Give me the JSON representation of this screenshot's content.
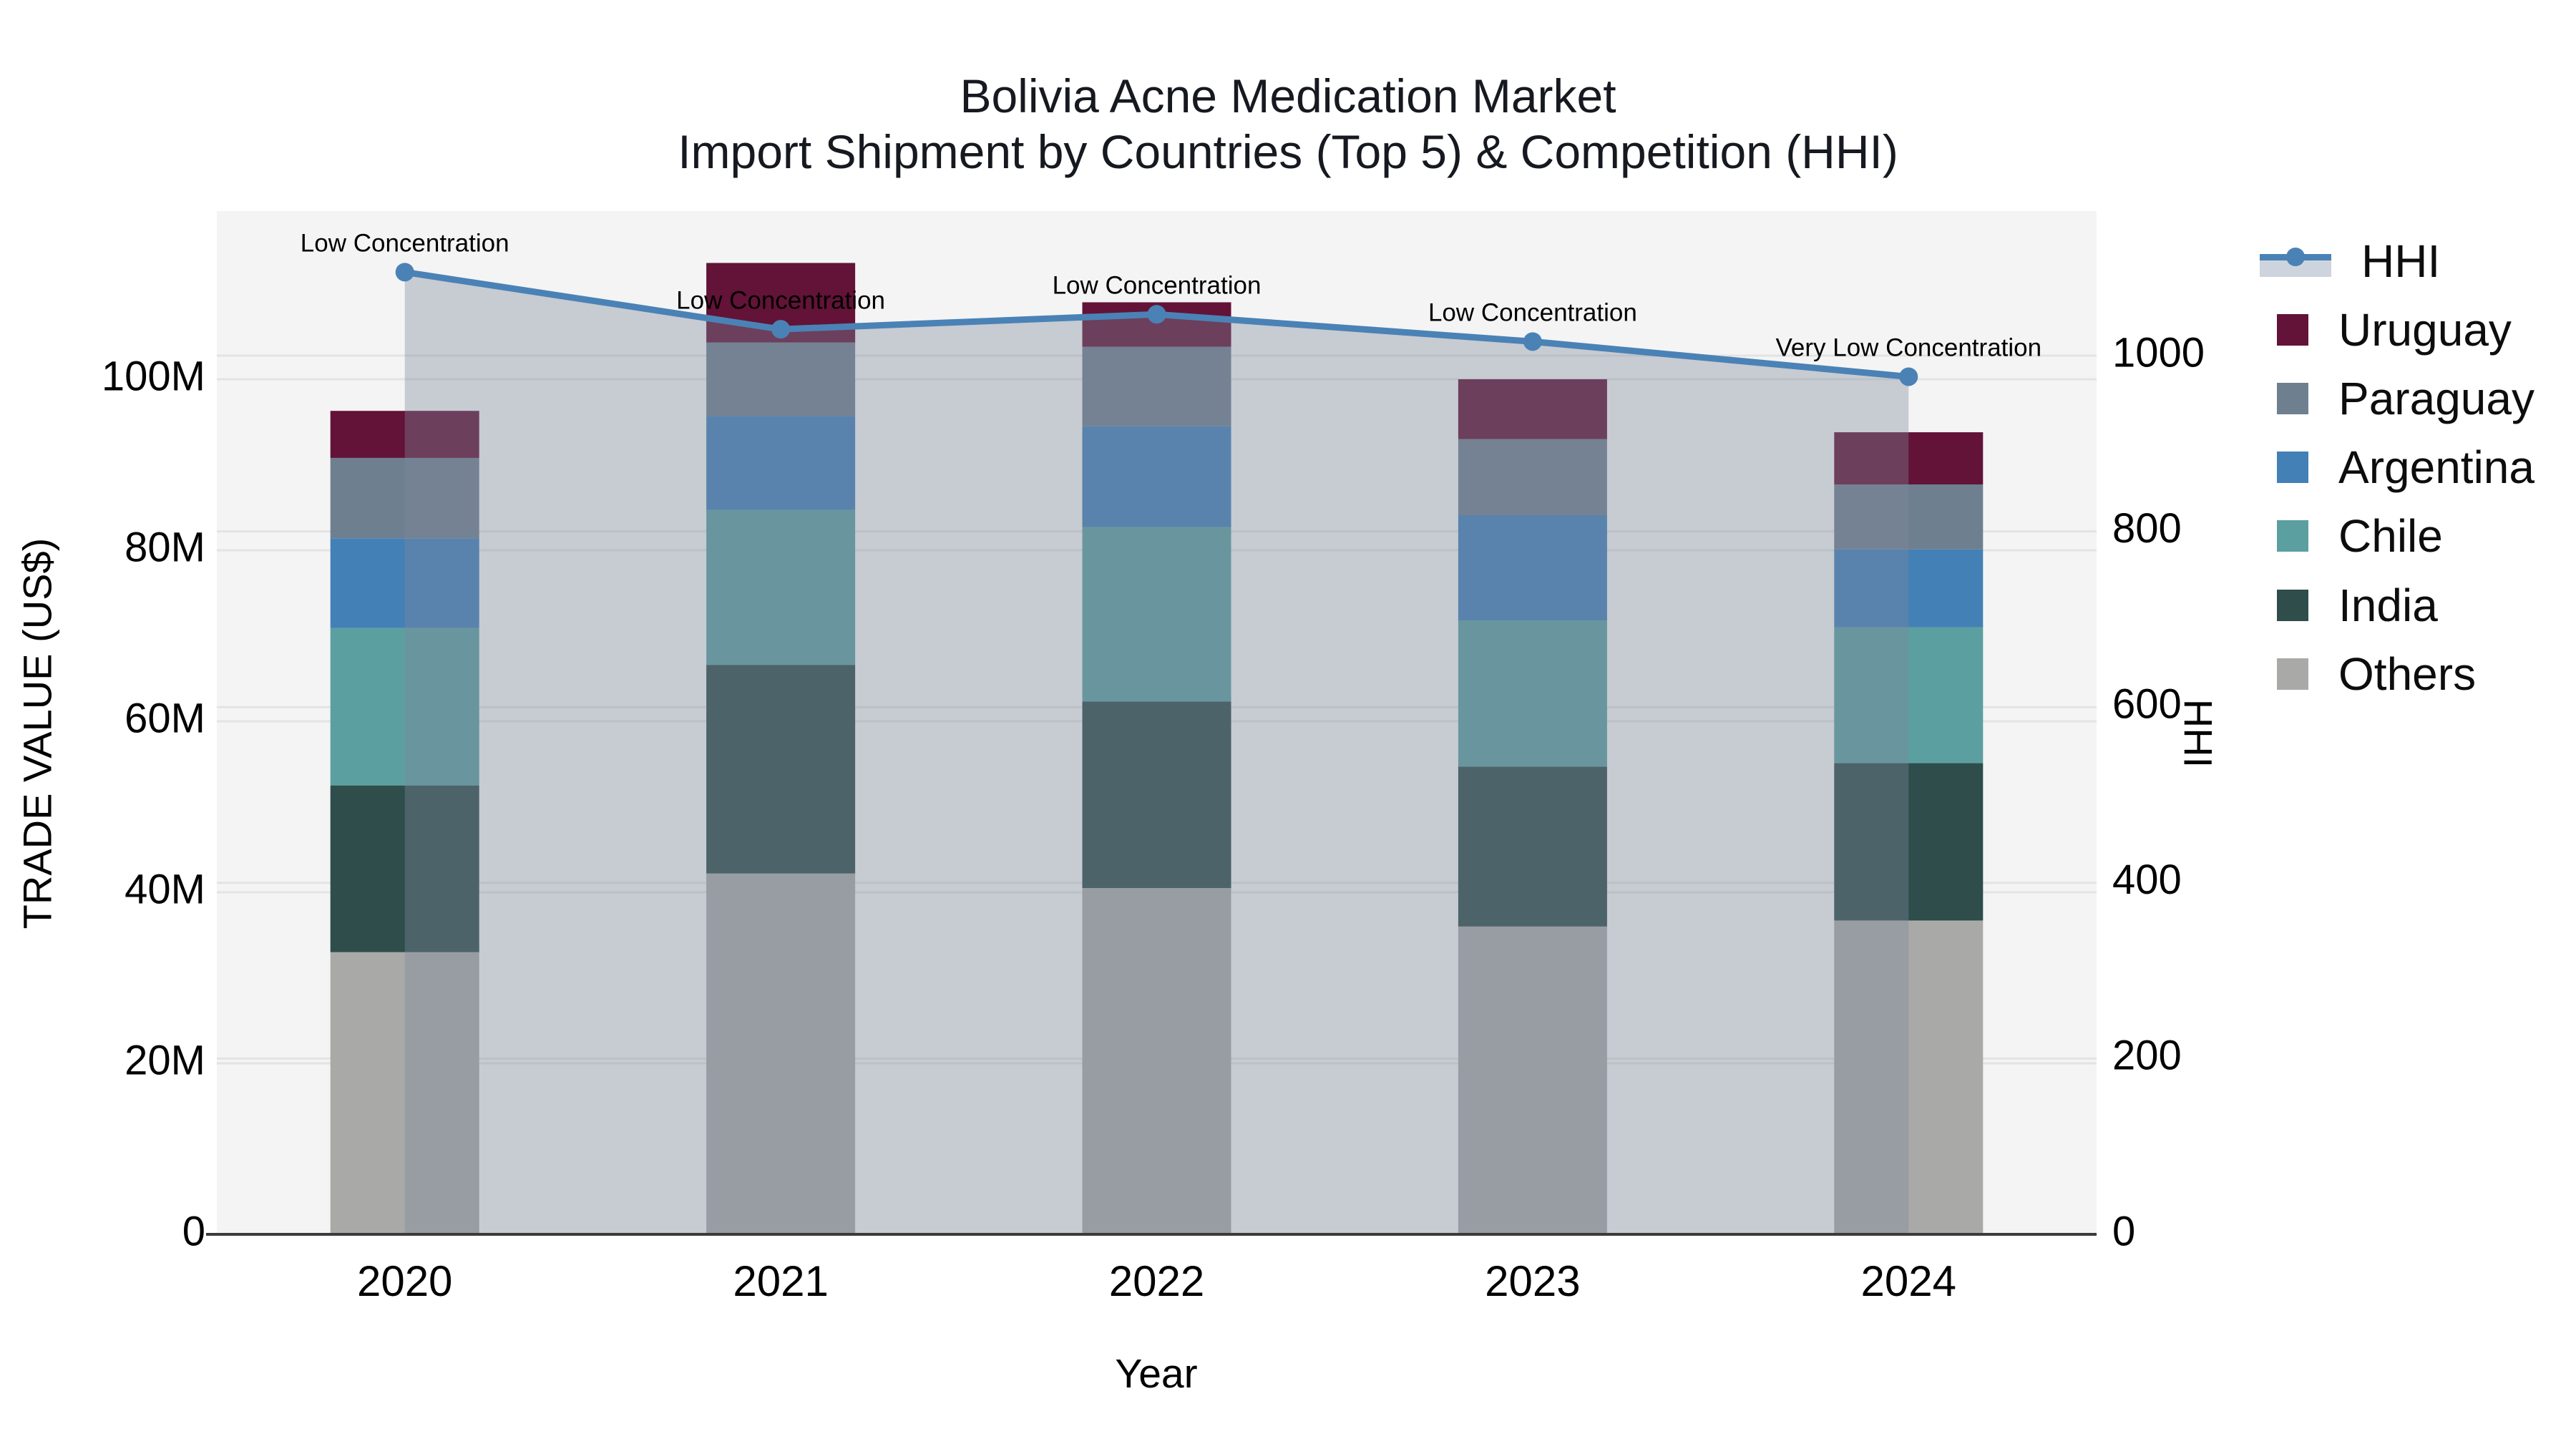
{
  "title": {
    "line1": "Bolivia Acne Medication Market",
    "line2": "Import Shipment by Countries (Top 5) & Competition (HHI)"
  },
  "axes": {
    "x_title": "Year",
    "y_left_title": "TRADE VALUE (US$)",
    "y_right_title": "HHI",
    "x_ticks": [
      "2020",
      "2021",
      "2022",
      "2023",
      "2024"
    ],
    "y_left_ticks": [
      "0",
      "20M",
      "40M",
      "60M",
      "80M",
      "100M"
    ],
    "y_left_tick_values": [
      0,
      20,
      40,
      60,
      80,
      100
    ],
    "y_right_ticks": [
      "0",
      "200",
      "400",
      "600",
      "800",
      "1000"
    ],
    "y_right_tick_values": [
      0,
      200,
      400,
      600,
      800,
      1000
    ]
  },
  "legend": [
    {
      "label": "HHI",
      "type": "line",
      "color": "#4a82b6"
    },
    {
      "label": "Uruguay",
      "type": "square",
      "color": "#621337"
    },
    {
      "label": "Paraguay",
      "type": "square",
      "color": "#6e7f90"
    },
    {
      "label": "Argentina",
      "type": "square",
      "color": "#4380b6"
    },
    {
      "label": "Chile",
      "type": "square",
      "color": "#5c9fa0"
    },
    {
      "label": "India",
      "type": "square",
      "color": "#2e4d4b"
    },
    {
      "label": "Others",
      "type": "square",
      "color": "#a9a9a8"
    }
  ],
  "chart_data": {
    "type": [
      "bar",
      "line"
    ],
    "bar_mode": "stacked",
    "unit": "US$ millions",
    "categories": [
      "2020",
      "2021",
      "2022",
      "2023",
      "2024"
    ],
    "stack_order_bottom_to_top": [
      "Others",
      "India",
      "Chile",
      "Argentina",
      "Paraguay",
      "Uruguay"
    ],
    "series": [
      {
        "name": "Others",
        "color": "#a9a9a8",
        "values": [
          33.0,
          42.2,
          40.5,
          36.0,
          36.7
        ]
      },
      {
        "name": "India",
        "color": "#2e4d4b",
        "values": [
          19.5,
          24.4,
          21.8,
          18.7,
          18.4
        ]
      },
      {
        "name": "Chile",
        "color": "#5c9fa0",
        "values": [
          18.4,
          18.1,
          20.4,
          17.1,
          15.9
        ]
      },
      {
        "name": "Argentina",
        "color": "#4380b6",
        "values": [
          10.5,
          11.0,
          11.8,
          12.3,
          9.1
        ]
      },
      {
        "name": "Paraguay",
        "color": "#6e7f90",
        "values": [
          9.4,
          8.6,
          9.3,
          8.9,
          7.6
        ]
      },
      {
        "name": "Uruguay",
        "color": "#621337",
        "values": [
          5.5,
          9.3,
          5.2,
          7.0,
          6.1
        ]
      }
    ],
    "bar_totals": [
      96.3,
      113.6,
      109.0,
      100.0,
      93.8
    ],
    "hhi": {
      "name": "HHI",
      "axis": "right",
      "color": "#4a82b6",
      "values": [
        1095,
        1030,
        1047,
        1016,
        976
      ],
      "annotations": [
        "Low Concentration",
        "Low Concentration",
        "Low Concentration",
        "Low Concentration",
        "Very Low Concentration"
      ]
    },
    "ylabel_left": "TRADE VALUE (US$)",
    "ylabel_right": "HHI",
    "xlabel": "Year",
    "ylim_left_millions": [
      0,
      100
    ],
    "ylim_right": [
      0,
      1000
    ],
    "grid": true,
    "legend_position": "right"
  },
  "colors": {
    "plot_background": "#f4f4f4",
    "page_background": "#ffffff",
    "gridline": "#e3e3e3",
    "axis_line": "#3b3b3b",
    "hhi_line": "#4a82b6",
    "hhi_area_fill": "rgba(127,137,155,0.38)",
    "text": "#000000"
  }
}
